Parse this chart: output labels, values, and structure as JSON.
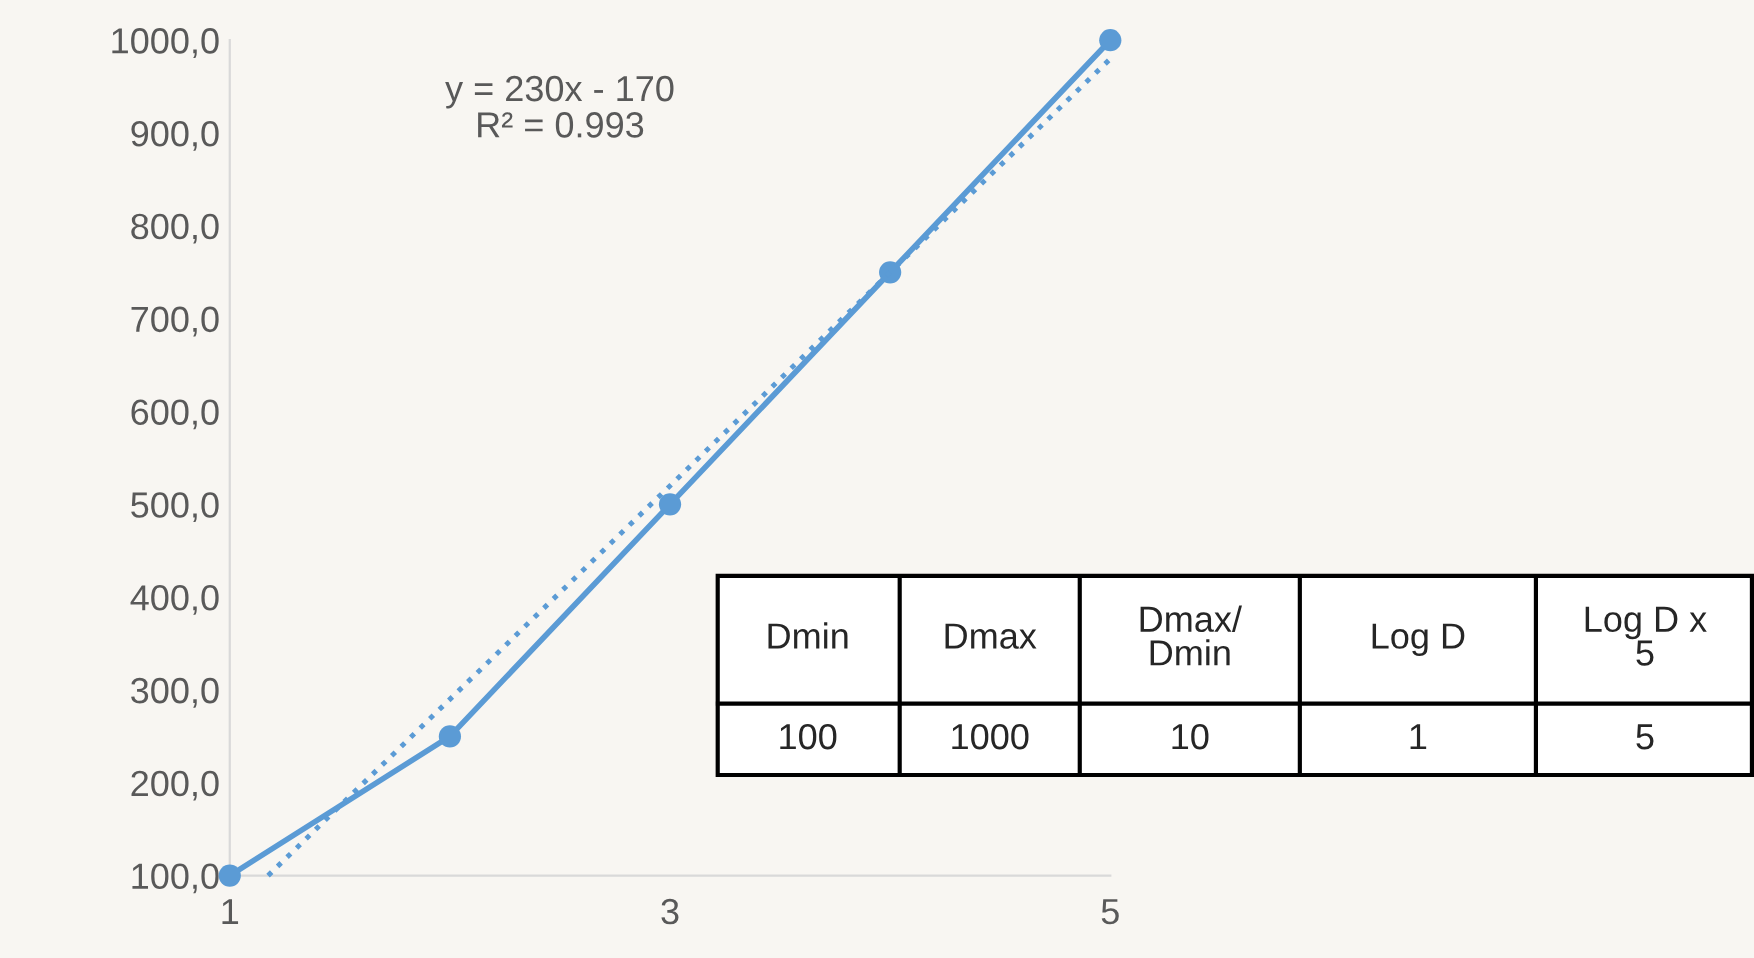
{
  "chart_data": {
    "type": "line",
    "x": [
      1,
      2,
      3,
      4,
      5
    ],
    "series": [
      {
        "color": "#5b9bd5",
        "values": [
          100,
          250,
          500,
          750,
          1000
        ],
        "marker": "circle",
        "line_style": "solid"
      },
      {
        "color": "#5b9bd5",
        "x": [
          1.1739,
          5
        ],
        "values": [
          100,
          980
        ],
        "marker": "none",
        "line_style": "dotted"
      }
    ],
    "xlim": [
      1,
      5
    ],
    "xticks": [
      1,
      3,
      5
    ],
    "ylim": [
      100,
      1000
    ],
    "yticks": [
      {
        "value": 100,
        "label": "100,0"
      },
      {
        "value": 200,
        "label": "200,0"
      },
      {
        "value": 300,
        "label": "300,0"
      },
      {
        "value": 400,
        "label": "400,0"
      },
      {
        "value": 500,
        "label": "500,0"
      },
      {
        "value": 600,
        "label": "600,0"
      },
      {
        "value": 700,
        "label": "700,0"
      },
      {
        "value": 800,
        "label": "800,0"
      },
      {
        "value": 900,
        "label": "900,0"
      },
      {
        "value": 1000,
        "label": "1000,0"
      }
    ],
    "grid": false,
    "legend": false,
    "annotations": [
      "y = 230x - 170\nR² = 0.993",
      "Dmin",
      "Dmax",
      "Dmax/\nDmin",
      "Log D",
      "Log D x\n5",
      "100",
      "1000",
      "10",
      "1",
      "5"
    ]
  }
}
